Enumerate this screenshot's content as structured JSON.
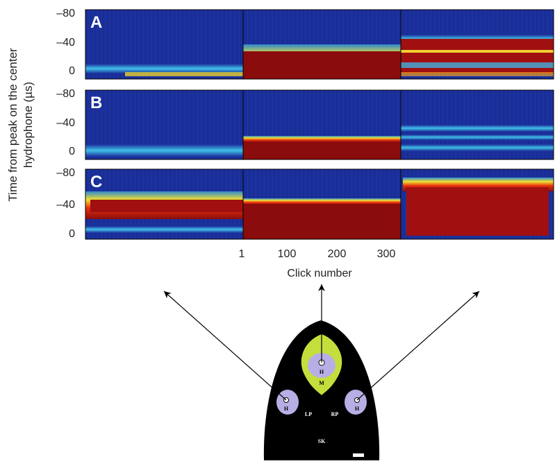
{
  "figure": {
    "y_axis_label": [
      "Time from peak on the center",
      "hydrophone (µs)"
    ],
    "panels": [
      {
        "label": "A",
        "yticks": [
          "–80",
          "–40",
          "0"
        ]
      },
      {
        "label": "B",
        "yticks": [
          "–80",
          "–40",
          "0"
        ]
      },
      {
        "label": "C",
        "yticks": [
          "–80",
          "–40",
          "0"
        ]
      }
    ],
    "x_ticks": [
      "1",
      "100",
      "200",
      "300"
    ],
    "x_axis_label": "Click number",
    "diagram": {
      "left_hydrophone": "H",
      "center_hydrophone": "H",
      "right_hydrophone": "H",
      "melon": "M",
      "left_pad": "LP",
      "right_pad": "RP",
      "skull": "SK"
    }
  }
}
